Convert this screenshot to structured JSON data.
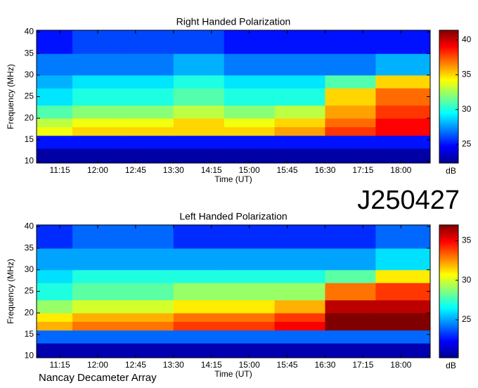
{
  "chart_data": [
    {
      "type": "heatmap",
      "title": "Right Handed Polarization",
      "xlabel": "Time (UT)",
      "ylabel": "Frequency (MHz)",
      "clabel": "dB",
      "xlim": [
        10.79,
        18.58
      ],
      "ylim": [
        9.6,
        40.4
      ],
      "clim": [
        22.3,
        41.4
      ],
      "xticks": [
        {
          "value": 11.25,
          "label": "11:15"
        },
        {
          "value": 12,
          "label": "12:00"
        },
        {
          "value": 12.75,
          "label": "12:45"
        },
        {
          "value": 13.5,
          "label": "13:30"
        },
        {
          "value": 14.25,
          "label": "14:15"
        },
        {
          "value": 15,
          "label": "15:00"
        },
        {
          "value": 15.75,
          "label": "15:45"
        },
        {
          "value": 16.5,
          "label": "16:30"
        },
        {
          "value": 17.25,
          "label": "17:15"
        },
        {
          "value": 18,
          "label": "18:00"
        }
      ],
      "yticks": [
        10,
        15,
        20,
        25,
        30,
        35,
        40
      ],
      "cticks": [
        25,
        30,
        35,
        40
      ],
      "time_edges": [
        10.79,
        11.5,
        12.5,
        13.5,
        14.5,
        15.5,
        16.5,
        17.5,
        18.58
      ],
      "freq_edges": [
        9.6,
        13,
        16,
        18,
        20,
        23,
        27,
        30,
        35,
        40.4
      ],
      "z": [
        [
          23,
          23,
          23,
          23,
          23,
          23,
          23,
          23
        ],
        [
          25,
          25,
          25,
          25,
          25,
          25,
          25,
          25
        ],
        [
          34,
          35,
          35,
          35,
          35,
          36,
          38,
          39
        ],
        [
          33,
          34,
          34,
          35,
          34,
          35,
          37,
          39
        ],
        [
          31,
          32,
          32,
          33,
          32,
          33,
          36,
          38
        ],
        [
          29,
          30,
          30,
          31,
          30,
          30,
          35,
          37
        ],
        [
          28,
          29,
          29,
          30,
          29,
          29,
          31,
          35
        ],
        [
          27,
          27,
          27,
          28,
          27,
          27,
          27,
          28
        ],
        [
          25,
          26,
          26,
          26,
          25,
          25,
          25,
          25
        ]
      ]
    },
    {
      "type": "heatmap",
      "title": "Left Handed Polarization",
      "xlabel": "Time (UT)",
      "ylabel": "Frequency (MHz)",
      "clabel": "dB",
      "xlim": [
        10.79,
        18.58
      ],
      "ylim": [
        9.6,
        40.4
      ],
      "clim": [
        20.2,
        37
      ],
      "xticks": [
        {
          "value": 11.25,
          "label": "11:15"
        },
        {
          "value": 12,
          "label": "12:00"
        },
        {
          "value": 12.75,
          "label": "12:45"
        },
        {
          "value": 13.5,
          "label": "13:30"
        },
        {
          "value": 14.25,
          "label": "14:15"
        },
        {
          "value": 15,
          "label": "15:00"
        },
        {
          "value": 15.75,
          "label": "15:45"
        },
        {
          "value": 16.5,
          "label": "16:30"
        },
        {
          "value": 17.25,
          "label": "17:15"
        },
        {
          "value": 18,
          "label": "18:00"
        }
      ],
      "yticks": [
        10,
        15,
        20,
        25,
        30,
        35,
        40
      ],
      "cticks": [
        25,
        30,
        35
      ],
      "time_edges": [
        10.79,
        11.5,
        12.5,
        13.5,
        14.5,
        15.5,
        16.5,
        17.5,
        18.58
      ],
      "freq_edges": [
        9.6,
        13,
        16,
        18,
        20,
        23,
        27,
        30,
        35,
        40.4
      ],
      "z": [
        [
          21,
          21,
          21,
          21,
          21,
          21,
          21,
          21
        ],
        [
          24,
          24,
          24,
          24,
          24,
          24,
          24,
          24
        ],
        [
          32,
          33,
          33,
          34,
          34,
          35,
          37,
          37
        ],
        [
          31,
          32,
          32,
          33,
          33,
          34,
          37,
          37
        ],
        [
          29,
          30,
          30,
          31,
          31,
          32,
          36,
          36
        ],
        [
          27,
          28,
          28,
          29,
          29,
          29,
          33,
          34
        ],
        [
          26,
          27,
          27,
          27,
          27,
          27,
          28,
          31
        ],
        [
          25,
          25,
          25,
          25,
          25,
          25,
          25,
          26
        ],
        [
          23,
          24,
          24,
          23,
          23,
          23,
          23,
          24
        ]
      ]
    }
  ],
  "id_label": "J250427",
  "credit": "Nancay Decameter Array"
}
